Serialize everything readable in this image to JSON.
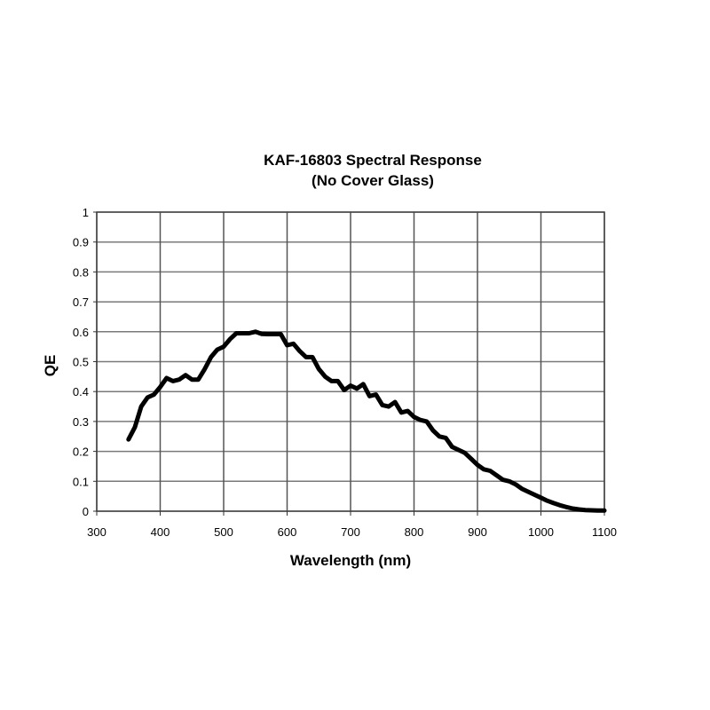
{
  "chart_data": {
    "type": "line",
    "title": "KAF-16803 Spectral Response",
    "subtitle": "(No Cover Glass)",
    "xlabel": "Wavelength (nm)",
    "ylabel": "QE",
    "xlim": [
      300,
      1100
    ],
    "ylim": [
      0,
      1
    ],
    "grid": true,
    "legend": "none",
    "xticks": [
      "300",
      "400",
      "500",
      "600",
      "700",
      "800",
      "900",
      "1000",
      "1100"
    ],
    "yticks": [
      "0",
      "0.1",
      "0.2",
      "0.3",
      "0.4",
      "0.5",
      "0.6",
      "0.7",
      "0.8",
      "0.9",
      "1"
    ],
    "series": [
      {
        "name": "QE",
        "color": "#000000",
        "x": [
          350,
          360,
          370,
          380,
          390,
          400,
          410,
          420,
          430,
          440,
          450,
          460,
          470,
          480,
          490,
          500,
          510,
          520,
          530,
          540,
          550,
          560,
          570,
          580,
          590,
          600,
          610,
          620,
          630,
          640,
          650,
          660,
          670,
          680,
          690,
          700,
          710,
          720,
          730,
          740,
          750,
          760,
          770,
          780,
          790,
          800,
          810,
          820,
          830,
          840,
          850,
          860,
          870,
          880,
          890,
          900,
          910,
          920,
          930,
          940,
          950,
          960,
          970,
          980,
          990,
          1000,
          1010,
          1020,
          1030,
          1040,
          1050,
          1060,
          1070,
          1080,
          1090,
          1100
        ],
        "y": [
          0.24,
          0.28,
          0.35,
          0.38,
          0.39,
          0.415,
          0.445,
          0.435,
          0.44,
          0.455,
          0.44,
          0.44,
          0.475,
          0.515,
          0.54,
          0.55,
          0.575,
          0.595,
          0.595,
          0.595,
          0.6,
          0.593,
          0.592,
          0.592,
          0.592,
          0.555,
          0.56,
          0.535,
          0.515,
          0.515,
          0.475,
          0.45,
          0.435,
          0.435,
          0.405,
          0.42,
          0.41,
          0.425,
          0.385,
          0.39,
          0.355,
          0.35,
          0.365,
          0.33,
          0.335,
          0.315,
          0.305,
          0.3,
          0.27,
          0.25,
          0.245,
          0.215,
          0.205,
          0.195,
          0.175,
          0.155,
          0.14,
          0.135,
          0.12,
          0.105,
          0.1,
          0.09,
          0.075,
          0.065,
          0.055,
          0.045,
          0.035,
          0.027,
          0.02,
          0.014,
          0.009,
          0.006,
          0.004,
          0.003,
          0.002,
          0.002
        ]
      }
    ]
  }
}
